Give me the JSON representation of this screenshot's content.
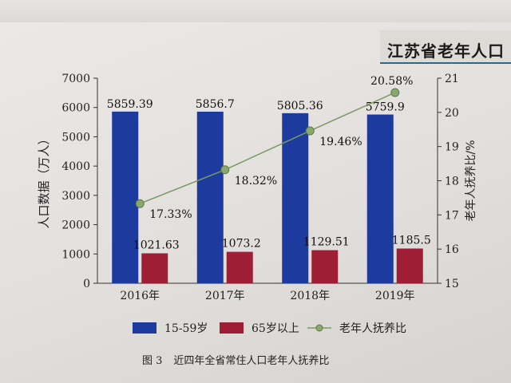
{
  "header": {
    "title": "江苏省老年人口"
  },
  "figure_caption": {
    "label": "图 3",
    "text": "近四年全省常住人口老年人抚养比"
  },
  "colors": {
    "working_age_bar": "#1d3a9e",
    "elderly_bar": "#9e1e35",
    "ratio_line": "#7a9a64",
    "ratio_marker": "#8aa86e"
  },
  "chart_data": {
    "type": "bar",
    "combo_with": "line",
    "title": "",
    "categories": [
      "2016年",
      "2017年",
      "2018年",
      "2019年"
    ],
    "ylabel": "人口数据（万人）",
    "ylim": [
      0,
      7000
    ],
    "y_ticks": [
      "0",
      "1000",
      "2000",
      "3000",
      "4000",
      "5000",
      "6000",
      "7000"
    ],
    "y2label": "老年人抚养比/%",
    "y2lim": [
      15,
      21
    ],
    "y2_ticks": [
      "15",
      "16",
      "17",
      "18",
      "19",
      "20",
      "21"
    ],
    "series": [
      {
        "name": "15-59岁",
        "type": "bar",
        "axis": "left",
        "values": [
          5859.39,
          5856.7,
          5805.36,
          5759.9
        ],
        "labels": [
          "5859.39",
          "5856.7",
          "5805.36",
          "5759.9"
        ]
      },
      {
        "name": "65岁以上",
        "type": "bar",
        "axis": "left",
        "values": [
          1021.63,
          1073.2,
          1129.51,
          1185.5
        ],
        "labels": [
          "1021.63",
          "1073.2",
          "1129.51",
          "1185.5"
        ]
      },
      {
        "name": "老年人抚养比",
        "type": "line",
        "axis": "right",
        "values": [
          17.33,
          18.32,
          19.46,
          20.58
        ],
        "labels": [
          "17.33%",
          "18.32%",
          "19.46%",
          "20.58%"
        ]
      }
    ],
    "legend_position": "bottom",
    "grid": false
  }
}
